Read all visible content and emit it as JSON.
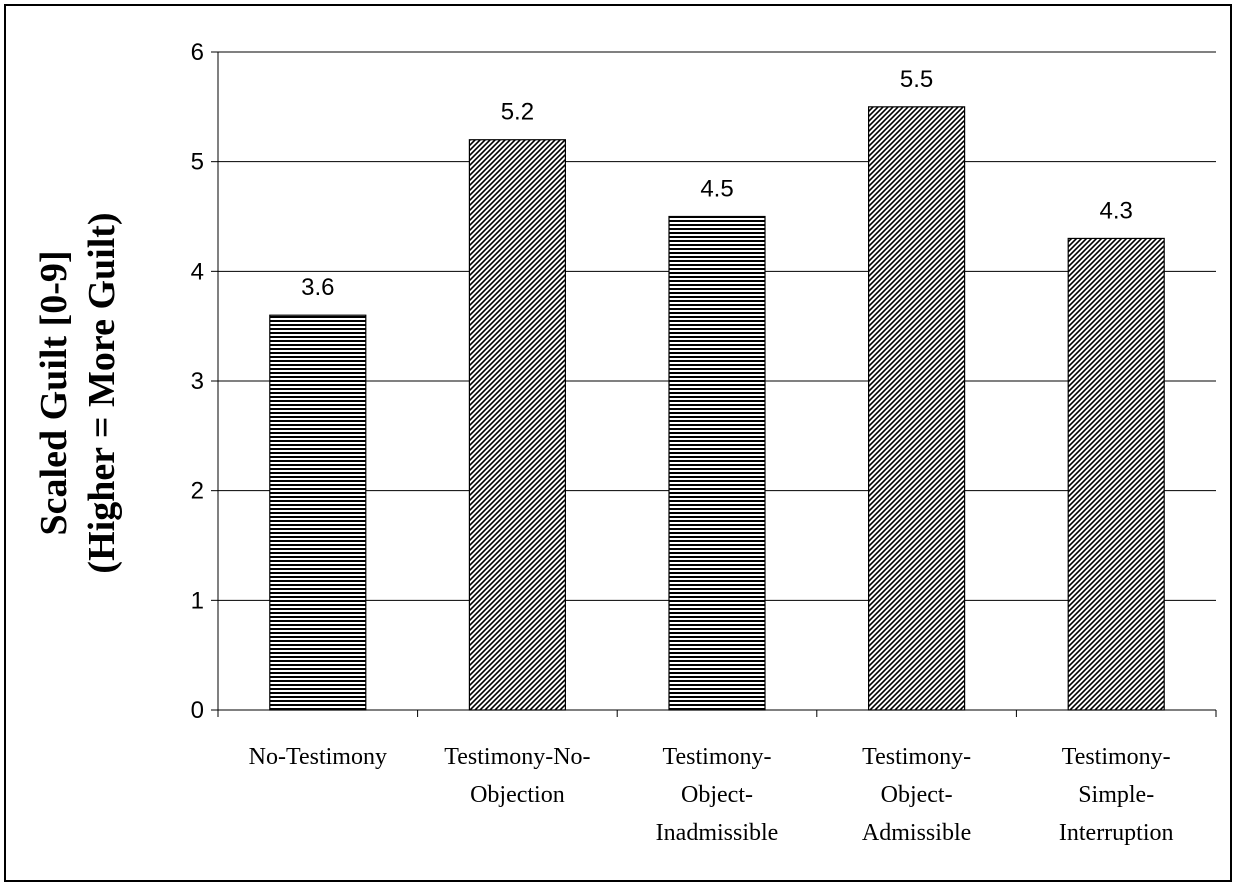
{
  "chart_data": {
    "type": "bar",
    "title": "",
    "xlabel": "",
    "ylabel_lines": [
      "Scaled Guilt [0-9]",
      "(Higher = More Guilt)"
    ],
    "ylim": [
      0,
      6
    ],
    "yticks": [
      0,
      1,
      2,
      3,
      4,
      5,
      6
    ],
    "grid": true,
    "legend": "none",
    "categories": [
      [
        "No-Testimony"
      ],
      [
        "Testimony-No-",
        "Objection"
      ],
      [
        "Testimony-",
        "Object-",
        "Inadmissible"
      ],
      [
        "Testimony-",
        "Object-",
        "Admissible"
      ],
      [
        "Testimony-",
        "Simple-",
        "Interruption"
      ]
    ],
    "values": [
      3.6,
      5.2,
      4.5,
      5.5,
      4.3
    ],
    "data_labels": [
      "3.6",
      "5.2",
      "4.5",
      "5.5",
      "4.3"
    ],
    "patterns": [
      "horizontal-stripes",
      "diagonal-hatch",
      "horizontal-stripes",
      "diagonal-hatch",
      "diagonal-hatch"
    ],
    "colors": {
      "bar_stroke": "#000000",
      "pattern": "#000000",
      "grid": "#000000",
      "background": "#ffffff"
    }
  }
}
